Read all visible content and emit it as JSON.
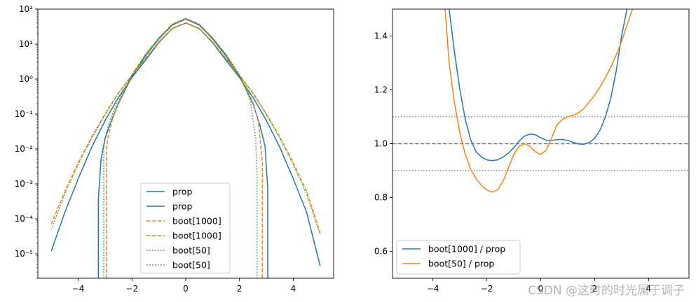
{
  "chart_data": [
    {
      "type": "line",
      "yscale": "log",
      "xlim": [
        -5.5,
        5.5
      ],
      "ylim": [
        2e-06,
        100
      ],
      "xticks": [
        -4,
        -2,
        0,
        2,
        4
      ],
      "xtick_labels": [
        "−4",
        "−2",
        "0",
        "2",
        "4"
      ],
      "yticks": [
        1e-05,
        0.0001,
        0.001,
        0.01,
        0.1,
        1,
        10,
        100
      ],
      "ytick_labels": [
        "10⁻⁵",
        "10⁻⁴",
        "10⁻³",
        "10⁻²",
        "10⁻¹",
        "10⁰",
        "10¹",
        "10²"
      ],
      "legend_position": "lower-center",
      "series": [
        {
          "name": "prop",
          "color": "#1f77b4",
          "style": "solid",
          "x": [
            -5,
            -4.5,
            -4,
            -3.5,
            -3,
            -2.5,
            -2,
            -1.5,
            -1,
            -0.5,
            0,
            0.5,
            1,
            1.5,
            2,
            2.5,
            3,
            3.5,
            4,
            4.5,
            5
          ],
          "y": [
            1.2e-05,
            0.00015,
            0.0014,
            0.011,
            0.065,
            0.3,
            1.1,
            3.4,
            11,
            28,
            40,
            28,
            11,
            3.4,
            1.1,
            0.3,
            0.065,
            0.011,
            0.0014,
            0.00015,
            4.5e-06
          ]
        },
        {
          "name": "prop",
          "color": "#1f77b4",
          "style": "solid",
          "x": [
            -3.25,
            -3.25,
            -3.15,
            -3,
            -2.75,
            -2.5,
            -2,
            -1.5,
            -1,
            -0.5,
            0,
            0.5,
            1,
            1.5,
            2,
            2.5,
            2.75,
            2.95,
            3.05,
            3.05
          ],
          "y": [
            2e-06,
            0.00035,
            0.005,
            0.02,
            0.07,
            0.2,
            1.2,
            4.5,
            14,
            35,
            52,
            35,
            14,
            4.5,
            1.2,
            0.2,
            0.05,
            0.012,
            0.0007,
            2e-06
          ]
        },
        {
          "name": "boot[1000]",
          "color": "#ff7f0e",
          "style": "dashed",
          "x": [
            -5,
            -4.5,
            -4,
            -3.5,
            -3,
            -2.5,
            -2,
            -1.5,
            -1,
            -0.5,
            0,
            0.5,
            1,
            1.5,
            2,
            2.5,
            3,
            3.5,
            4,
            4.5,
            5
          ],
          "y": [
            7e-05,
            0.0006,
            0.004,
            0.022,
            0.1,
            0.4,
            1.3,
            3.8,
            11.5,
            28,
            40,
            28,
            11.5,
            3.8,
            1.3,
            0.4,
            0.1,
            0.022,
            0.004,
            0.0006,
            4e-05
          ]
        },
        {
          "name": "boot[1000]",
          "color": "#ff7f0e",
          "style": "dashed",
          "x": [
            -2.95,
            -2.95,
            -2.9,
            -2.75,
            -2.5,
            -2,
            -1.5,
            -1,
            -0.5,
            0,
            0.5,
            1,
            1.5,
            2,
            2.5,
            2.7,
            2.85,
            2.85
          ],
          "y": [
            2e-06,
            0.01,
            0.02,
            0.06,
            0.22,
            1.3,
            5,
            15,
            37,
            54,
            37,
            15,
            5,
            1.3,
            0.22,
            0.06,
            0.004,
            2e-06
          ]
        },
        {
          "name": "boot[50]",
          "color": "#2ca02c",
          "style": "dotted",
          "x": [
            -5,
            -4.5,
            -4,
            -3.5,
            -3,
            -2.5,
            -2,
            -1.5,
            -1,
            -0.5,
            0,
            0.5,
            1,
            1.5,
            2,
            2.5,
            3,
            3.5,
            4,
            4.5,
            5
          ],
          "y": [
            5e-05,
            0.0005,
            0.0035,
            0.02,
            0.095,
            0.39,
            1.25,
            3.7,
            11.2,
            27.5,
            40,
            27.5,
            11.2,
            3.7,
            1.25,
            0.39,
            0.095,
            0.02,
            0.0035,
            0.0005,
            3.5e-05
          ]
        },
        {
          "name": "boot[50]",
          "color": "#2ca02c",
          "style": "dotted",
          "x": [
            -3.05,
            -3.05,
            -3.0,
            -2.85,
            -2.5,
            -2,
            -1.5,
            -1,
            -0.5,
            0,
            0.5,
            1,
            1.5,
            2,
            2.4,
            2.6,
            2.65,
            2.65
          ],
          "y": [
            2e-06,
            0.01,
            0.02,
            0.06,
            0.25,
            1.3,
            5,
            15,
            37,
            54,
            37,
            15,
            5,
            1.3,
            0.25,
            0.02,
            0.002,
            2e-06
          ]
        }
      ]
    },
    {
      "type": "line",
      "xlim": [
        -5.5,
        5.5
      ],
      "ylim": [
        0.5,
        1.5
      ],
      "xticks": [
        -4,
        -2,
        0,
        2,
        4
      ],
      "xtick_labels": [
        "−4",
        "−2",
        "0",
        "2",
        "4"
      ],
      "yticks": [
        0.6,
        0.8,
        1.0,
        1.2,
        1.4
      ],
      "ytick_labels": [
        "0.6",
        "0.8",
        "1.0",
        "1.2",
        "1.4"
      ],
      "legend_position": "lower-left",
      "reference_lines": [
        {
          "y": 1.0,
          "style": "dashed",
          "color": "#808080"
        },
        {
          "y": 1.1,
          "style": "dotted",
          "color": "#808080"
        },
        {
          "y": 0.9,
          "style": "dotted",
          "color": "#808080"
        }
      ],
      "series": [
        {
          "name": "boot[1000] / prop",
          "color": "#1f77b4",
          "style": "solid",
          "x": [
            -3.4,
            -3.2,
            -3.0,
            -2.8,
            -2.6,
            -2.4,
            -2.2,
            -2.0,
            -1.8,
            -1.6,
            -1.4,
            -1.2,
            -1.0,
            -0.8,
            -0.6,
            -0.4,
            -0.2,
            0.0,
            0.2,
            0.4,
            0.6,
            0.8,
            1.0,
            1.2,
            1.4,
            1.6,
            1.8,
            2.0,
            2.2,
            2.4,
            2.6,
            2.8,
            3.0,
            3.2
          ],
          "y": [
            1.5,
            1.34,
            1.2,
            1.09,
            1.015,
            0.97,
            0.95,
            0.94,
            0.937,
            0.94,
            0.95,
            0.965,
            0.985,
            1.01,
            1.028,
            1.036,
            1.033,
            1.022,
            1.013,
            1.012,
            1.015,
            1.016,
            1.012,
            1.005,
            0.999,
            0.998,
            1.004,
            1.02,
            1.05,
            1.1,
            1.17,
            1.27,
            1.4,
            1.5
          ]
        },
        {
          "name": "boot[50] / prop",
          "color": "#ff7f0e",
          "style": "solid",
          "x": [
            -3.55,
            -3.4,
            -3.2,
            -3.0,
            -2.8,
            -2.6,
            -2.4,
            -2.2,
            -2.0,
            -1.8,
            -1.6,
            -1.4,
            -1.2,
            -1.0,
            -0.8,
            -0.6,
            -0.4,
            -0.2,
            0.0,
            0.2,
            0.4,
            0.6,
            0.8,
            1.0,
            1.2,
            1.4,
            1.6,
            1.8,
            2.0,
            2.2,
            2.4,
            2.6,
            2.8,
            3.0,
            3.2,
            3.4,
            3.55
          ],
          "y": [
            1.5,
            1.3,
            1.15,
            1.04,
            0.96,
            0.905,
            0.87,
            0.845,
            0.828,
            0.82,
            0.828,
            0.86,
            0.91,
            0.96,
            0.99,
            1.0,
            0.99,
            0.97,
            0.96,
            0.975,
            1.02,
            1.07,
            1.09,
            1.1,
            1.105,
            1.115,
            1.13,
            1.155,
            1.18,
            1.21,
            1.245,
            1.285,
            1.33,
            1.38,
            1.44,
            1.5,
            1.55
          ]
        }
      ]
    }
  ],
  "watermark": "CSDN @这时的时光属于调子"
}
